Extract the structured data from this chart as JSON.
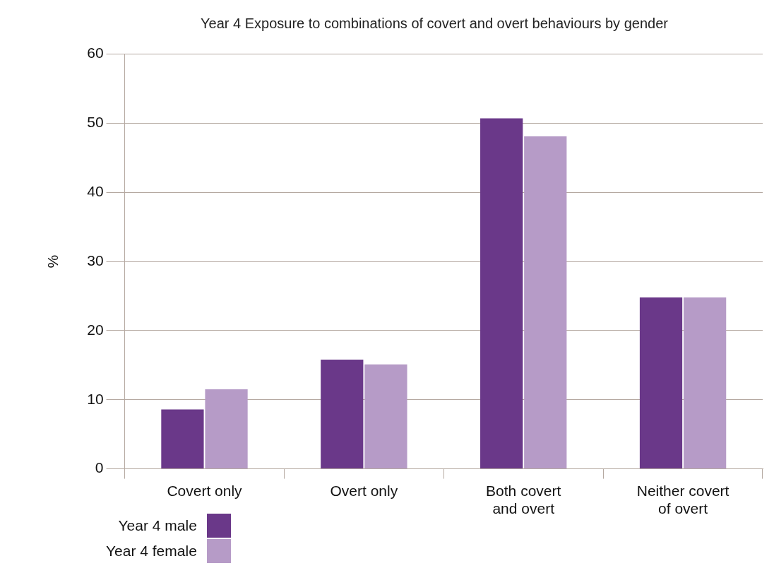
{
  "chart_data": {
    "type": "bar",
    "title": "Year 4 Exposure to combinations of covert and overt behaviours by gender",
    "ylabel": "%",
    "categories": [
      "Covert only",
      "Overt only",
      "Both covert and overt",
      "Neither covert of overt"
    ],
    "series": [
      {
        "name": "Year 4 male",
        "color": "#6a3889",
        "values": [
          8.6,
          15.8,
          50.7,
          24.8
        ]
      },
      {
        "name": "Year 4 female",
        "color": "#b69bc7",
        "values": [
          11.5,
          15.1,
          48.1,
          24.8
        ]
      }
    ],
    "ylim": [
      0,
      60
    ],
    "yticks": [
      0,
      10,
      20,
      30,
      40,
      50,
      60
    ],
    "grid": "y",
    "legend": "bottom left"
  }
}
